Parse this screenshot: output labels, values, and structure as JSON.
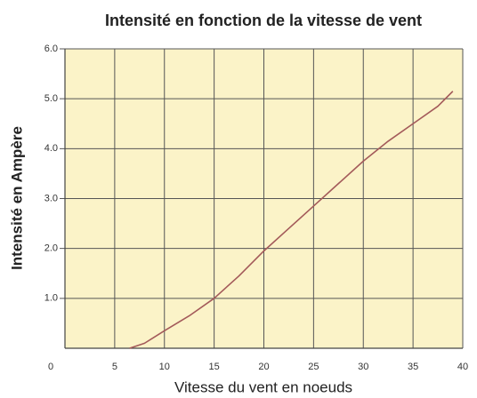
{
  "chart_data": {
    "type": "line",
    "title": "Intensité en fonction de la vitesse de vent",
    "xlabel": "Vitesse du vent en noeuds",
    "ylabel": "Intensité en Ampère",
    "x": [
      6.5,
      8,
      10,
      12.5,
      15,
      17.5,
      20,
      22.5,
      25,
      27.5,
      30,
      32.5,
      35,
      37.5,
      39
    ],
    "values": [
      0,
      0.1,
      0.35,
      0.65,
      1.0,
      1.45,
      1.95,
      2.4,
      2.85,
      3.3,
      3.75,
      4.15,
      4.5,
      4.85,
      5.15
    ],
    "color": "#a35a5a",
    "xlim": [
      0,
      40
    ],
    "xticks": [
      0,
      5,
      10,
      15,
      20,
      25,
      30,
      35,
      40
    ],
    "ylim": [
      0,
      6
    ],
    "yticks": [
      {
        "value": 1,
        "label": "1.0"
      },
      {
        "value": 2,
        "label": "2.0"
      },
      {
        "value": 3,
        "label": "3.0"
      },
      {
        "value": 4,
        "label": "4.0"
      },
      {
        "value": 5,
        "label": "5.0"
      },
      {
        "value": 6,
        "label": "6.0"
      }
    ],
    "grid": true
  }
}
